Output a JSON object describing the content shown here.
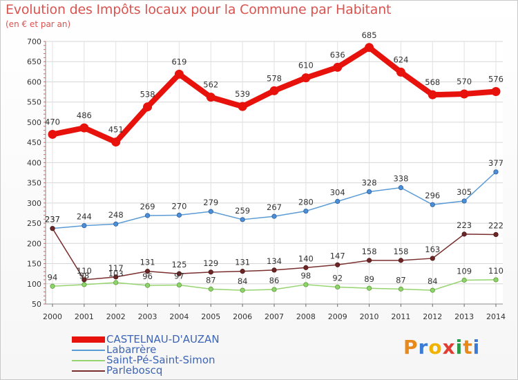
{
  "header": {
    "title": "Evolution des Impôts locaux pour la Commune par Habitant",
    "subtitle": "(en € et par an)"
  },
  "brand": {
    "text": "Proxiti",
    "letters": [
      "P",
      "r",
      "o",
      "x",
      "i",
      "t",
      "i"
    ],
    "colors": [
      "#e8891c",
      "#3a7bd5",
      "#f0b400",
      "#e03c31",
      "#2c9a48",
      "#e8891c",
      "#3a7bd5"
    ]
  },
  "chart_data": {
    "type": "line",
    "title": "Evolution des Impôts locaux pour la Commune par Habitant",
    "subtitle": "(en € et par an)",
    "x": [
      "2000",
      "2001",
      "2002",
      "2003",
      "2004",
      "2005",
      "2006",
      "2007",
      "2008",
      "2009",
      "2010",
      "2011",
      "2012",
      "2013",
      "2014"
    ],
    "ylim": [
      50,
      700
    ],
    "yticks": [
      50,
      100,
      150,
      200,
      250,
      300,
      350,
      400,
      450,
      500,
      550,
      600,
      650,
      700
    ],
    "grid": true,
    "legend_position": "bottom-left",
    "series": [
      {
        "name": "CASTELNAU-D'AUZAN",
        "color": "#e8120c",
        "values": [
          470,
          486,
          451,
          538,
          619,
          562,
          539,
          578,
          610,
          636,
          685,
          624,
          568,
          570,
          576
        ]
      },
      {
        "name": "Labarrère",
        "color": "#5b9bd5",
        "values": [
          237,
          244,
          248,
          269,
          270,
          279,
          259,
          267,
          280,
          304,
          328,
          338,
          296,
          305,
          377
        ]
      },
      {
        "name": "Saint-Pé-Saint-Simon",
        "color": "#96d470",
        "values": [
          94,
          98,
          103,
          96,
          97,
          87,
          84,
          86,
          98,
          92,
          89,
          87,
          84,
          109,
          110
        ]
      },
      {
        "name": "Parleboscq",
        "color": "#7a2d2d",
        "values": [
          237,
          110,
          117,
          131,
          125,
          129,
          131,
          134,
          140,
          147,
          158,
          158,
          163,
          223,
          222
        ]
      }
    ]
  }
}
